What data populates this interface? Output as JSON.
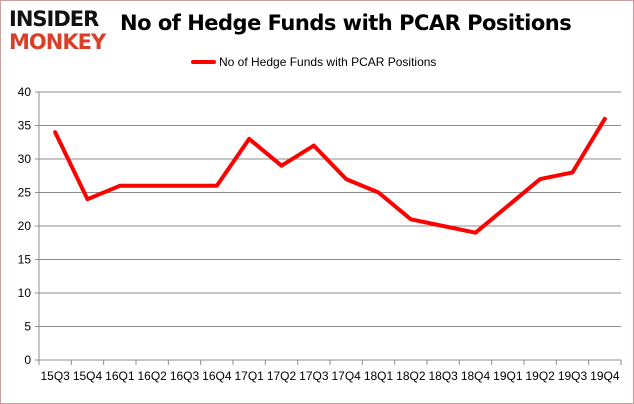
{
  "logo": {
    "line1": "INSIDER",
    "line2": "MONKEY"
  },
  "chart_data": {
    "type": "line",
    "title": "No of Hedge Funds with PCAR Positions",
    "categories": [
      "15Q3",
      "15Q4",
      "16Q1",
      "16Q2",
      "16Q3",
      "16Q4",
      "17Q1",
      "17Q2",
      "17Q3",
      "17Q4",
      "18Q1",
      "18Q2",
      "18Q3",
      "18Q4",
      "19Q1",
      "19Q2",
      "19Q3",
      "19Q4"
    ],
    "series": [
      {
        "name": "No of Hedge Funds with PCAR Positions",
        "values": [
          34,
          24,
          26,
          26,
          26,
          26,
          33,
          29,
          32,
          27,
          25,
          21,
          20,
          19,
          23,
          27,
          28,
          36
        ],
        "color": "#ff0000"
      }
    ],
    "ylim": [
      0,
      40
    ],
    "yticks": [
      0,
      5,
      10,
      15,
      20,
      25,
      30,
      35,
      40
    ],
    "grid": true,
    "legend_position": "top"
  }
}
